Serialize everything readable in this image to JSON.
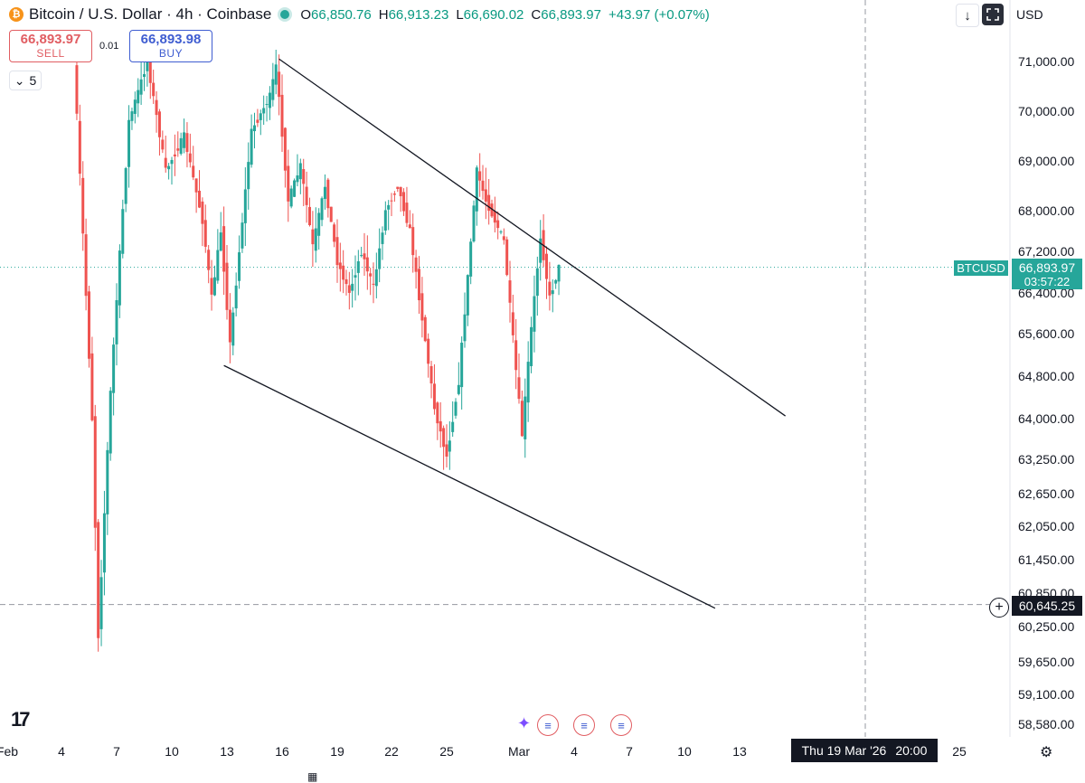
{
  "header": {
    "coin_icon": "bitcoin-icon",
    "title": "Bitcoin / U.S. Dollar · 4h · Coinbase",
    "ohlc": {
      "o_label": "O",
      "o_value": "66,850.76",
      "h_label": "H",
      "h_value": "66,913.23",
      "l_label": "L",
      "l_value": "66,690.02",
      "c_label": "C",
      "c_value": "66,893.97",
      "change": "+43.97 (+0.07%)"
    }
  },
  "trade": {
    "sell_price": "66,893.97",
    "sell_label": "SELL",
    "buy_price": "66,893.98",
    "buy_label": "BUY",
    "spread": "0.01"
  },
  "interval_control": {
    "value": "5"
  },
  "toolbar": {
    "currency": "USD",
    "download_icon": "arrow-down-icon",
    "fullscreen_icon": "fullscreen-icon"
  },
  "price_tag": {
    "ticker": "BTCUSD",
    "price": "66,893.97",
    "countdown": "03:57:22"
  },
  "crosshair": {
    "price": "60,645.25",
    "time_day": "Thu 19 Mar '26",
    "time_clock": "20:00"
  },
  "colors": {
    "up": "#26a69a",
    "down": "#ef5350",
    "accent_sell": "#e15d62",
    "accent_buy": "#3f5dd1"
  },
  "chart_data": {
    "type": "candlestick",
    "symbol": "BTCUSD",
    "interval": "4h",
    "y_axis": {
      "ticks": [
        71000,
        70000,
        69000,
        68000,
        67200,
        66400,
        65600,
        64800,
        64000,
        63250,
        62650,
        62050,
        61450,
        60850,
        60250,
        59650,
        59100,
        58580
      ],
      "tick_labels": [
        "71,000.00",
        "70,000.00",
        "69,000.00",
        "68,000.00",
        "67,200.00",
        "66,400.00",
        "65,600.00",
        "64,800.00",
        "64,000.00",
        "63,250.00",
        "62,650.00",
        "62,050.00",
        "61,450.00",
        "60,850.00",
        "60,250.00",
        "59,650.00",
        "59,100.00",
        "58,580.00"
      ]
    },
    "x_axis": {
      "tick_labels": [
        "Feb",
        "4",
        "7",
        "10",
        "13",
        "16",
        "19",
        "22",
        "25",
        "Mar",
        "4",
        "7",
        "10",
        "13",
        "25"
      ],
      "tick_dates": [
        "2026-02-01",
        "2026-02-04",
        "2026-02-07",
        "2026-02-10",
        "2026-02-13",
        "2026-02-16",
        "2026-02-19",
        "2026-02-22",
        "2026-02-25",
        "2026-03-01",
        "2026-03-04",
        "2026-03-07",
        "2026-03-10",
        "2026-03-13",
        "2026-03-25"
      ]
    },
    "last_price": 66893.97,
    "crosshair_price": 60645.25,
    "trend_lines": [
      {
        "name": "upper",
        "start": {
          "date": "2026-02-15T20:00",
          "price": 71050
        },
        "end": {
          "date": "2026-03-15T12:00",
          "price": 64050
        }
      },
      {
        "name": "lower",
        "start": {
          "date": "2026-02-12T20:00",
          "price": 65000
        },
        "end": {
          "date": "2026-03-11T16:00",
          "price": 60580
        }
      }
    ],
    "pivots": [
      {
        "date": "2026-02-04T20:00",
        "price": 71050
      },
      {
        "date": "2026-02-05T20:00",
        "price": 64000
      },
      {
        "date": "2026-02-06T04:00",
        "price": 60100
      },
      {
        "date": "2026-02-06T20:00",
        "price": 64500
      },
      {
        "date": "2026-02-07T20:00",
        "price": 69800
      },
      {
        "date": "2026-02-08T20:00",
        "price": 71000
      },
      {
        "date": "2026-02-09T20:00",
        "price": 68800
      },
      {
        "date": "2026-02-10T20:00",
        "price": 69500
      },
      {
        "date": "2026-02-11T20:00",
        "price": 67800
      },
      {
        "date": "2026-02-12T08:00",
        "price": 66300
      },
      {
        "date": "2026-02-12T20:00",
        "price": 67600
      },
      {
        "date": "2026-02-13T08:00",
        "price": 65400
      },
      {
        "date": "2026-02-14T12:00",
        "price": 69600
      },
      {
        "date": "2026-02-15T12:00",
        "price": 70300
      },
      {
        "date": "2026-02-15T20:00",
        "price": 70900
      },
      {
        "date": "2026-02-16T12:00",
        "price": 68200
      },
      {
        "date": "2026-02-17T04:00",
        "price": 68900
      },
      {
        "date": "2026-02-17T20:00",
        "price": 67300
      },
      {
        "date": "2026-02-18T12:00",
        "price": 68500
      },
      {
        "date": "2026-02-19T04:00",
        "price": 67000
      },
      {
        "date": "2026-02-19T20:00",
        "price": 66400
      },
      {
        "date": "2026-02-20T12:00",
        "price": 67200
      },
      {
        "date": "2026-02-21T04:00",
        "price": 66500
      },
      {
        "date": "2026-02-21T20:00",
        "price": 68000
      },
      {
        "date": "2026-02-22T12:00",
        "price": 68500
      },
      {
        "date": "2026-02-23T04:00",
        "price": 67600
      },
      {
        "date": "2026-02-23T20:00",
        "price": 65900
      },
      {
        "date": "2026-02-24T12:00",
        "price": 64200
      },
      {
        "date": "2026-02-25T04:00",
        "price": 63300
      },
      {
        "date": "2026-02-25T20:00",
        "price": 64700
      },
      {
        "date": "2026-02-26T08:00",
        "price": 66700
      },
      {
        "date": "2026-02-26T20:00",
        "price": 68800
      },
      {
        "date": "2026-02-27T08:00",
        "price": 68200
      },
      {
        "date": "2026-02-27T20:00",
        "price": 67800
      },
      {
        "date": "2026-02-28T08:00",
        "price": 67400
      },
      {
        "date": "2026-02-28T20:00",
        "price": 65500
      },
      {
        "date": "2026-03-01T08:00",
        "price": 63700
      },
      {
        "date": "2026-03-01T20:00",
        "price": 65700
      },
      {
        "date": "2026-03-02T08:00",
        "price": 67500
      },
      {
        "date": "2026-03-02T20:00",
        "price": 66300
      },
      {
        "date": "2026-03-03T08:00",
        "price": 66894
      }
    ]
  }
}
